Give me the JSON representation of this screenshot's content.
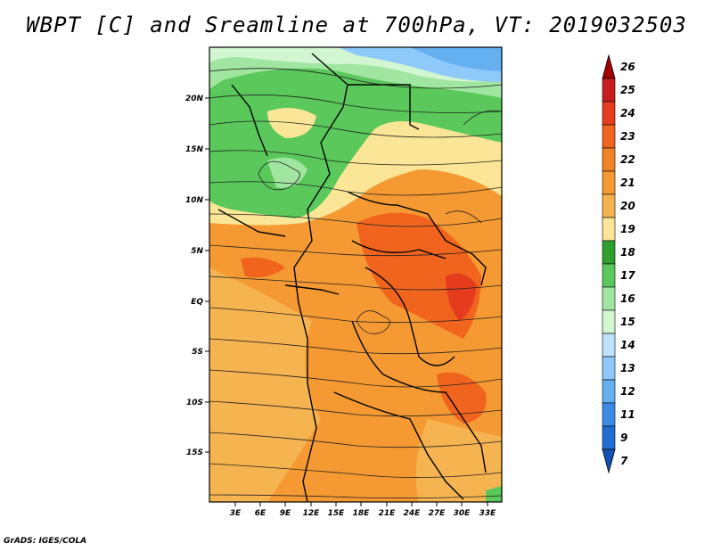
{
  "title": "WBPT [C] and Sreamline at 700hPa, VT: 2019032503",
  "footer": "GrADS: IGES/COLA",
  "map": {
    "lat_labels": [
      "20N",
      "15N",
      "10N",
      "5N",
      "EQ",
      "5S",
      "10S",
      "15S"
    ],
    "lon_labels": [
      "3E",
      "6E",
      "9E",
      "12E",
      "15E",
      "18E",
      "21E",
      "24E",
      "27E",
      "30E",
      "33E"
    ]
  },
  "colorbar": {
    "levels": [
      "26",
      "25",
      "24",
      "23",
      "22",
      "21",
      "20",
      "19",
      "18",
      "17",
      "16",
      "15",
      "14",
      "13",
      "12",
      "11",
      "9",
      "7"
    ],
    "colors": [
      "#a00000",
      "#c81e1e",
      "#e63c1e",
      "#f0641e",
      "#f08228",
      "#f59a32",
      "#f5b450",
      "#fae696",
      "#2da02d",
      "#5ac85a",
      "#a0e6a0",
      "#d2f5d2",
      "#bde3ff",
      "#8ec9fa",
      "#64b0f0",
      "#3c8ce6",
      "#1e6ed2",
      "#1450b4"
    ]
  }
}
